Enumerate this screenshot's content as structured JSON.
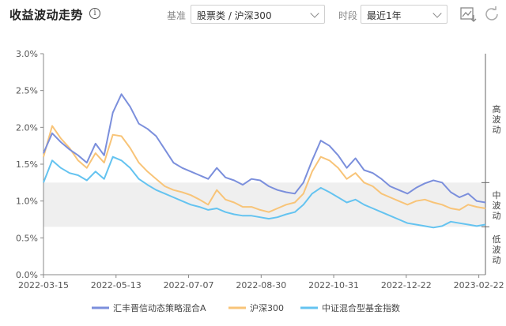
{
  "header": {
    "title": "收益波动走势",
    "info_symbol": "i",
    "benchmark_label": "基准",
    "benchmark_value": "股票类 / 沪深300",
    "period_label": "时段",
    "period_value": "最近1年"
  },
  "colors": {
    "fund": "#7b8fdc",
    "hs300": "#f8c478",
    "index": "#64c3f0",
    "band": "#efefef",
    "axis": "#888888"
  },
  "icons": [
    "chart-download-icon",
    "refresh-icon",
    "info-icon",
    "chevron-down-icon"
  ],
  "volatility_labels": {
    "high": [
      "高",
      "波",
      "动"
    ],
    "mid": [
      "中",
      "波",
      "动"
    ],
    "low": [
      "低",
      "波",
      "动"
    ]
  },
  "chart_data": {
    "type": "line",
    "title": "",
    "xlabel": "",
    "ylabel": "",
    "x_ticks": [
      "2022-03-15",
      "2022-05-13",
      "2022-07-07",
      "2022-08-30",
      "2022-10-31",
      "2022-12-22",
      "2023-02-22"
    ],
    "y_ticks": [
      "0.0%",
      "0.5%",
      "1.0%",
      "1.5%",
      "2.0%",
      "2.5%",
      "3.0%"
    ],
    "ylim": [
      0,
      3.0
    ],
    "y_unit": "%",
    "mid_volatility_band": [
      0.65,
      1.25
    ],
    "legend_position": "bottom",
    "x": [
      "2022-03-15",
      "2022-03-22",
      "2022-03-29",
      "2022-04-05",
      "2022-04-12",
      "2022-04-19",
      "2022-04-26",
      "2022-05-03",
      "2022-05-10",
      "2022-05-17",
      "2022-05-24",
      "2022-05-31",
      "2022-06-07",
      "2022-06-14",
      "2022-06-21",
      "2022-06-28",
      "2022-07-05",
      "2022-07-12",
      "2022-07-19",
      "2022-07-26",
      "2022-08-02",
      "2022-08-09",
      "2022-08-16",
      "2022-08-23",
      "2022-08-30",
      "2022-09-06",
      "2022-09-13",
      "2022-09-20",
      "2022-09-27",
      "2022-10-04",
      "2022-10-11",
      "2022-10-18",
      "2022-10-25",
      "2022-11-01",
      "2022-11-08",
      "2022-11-15",
      "2022-11-22",
      "2022-11-29",
      "2022-12-06",
      "2022-12-13",
      "2022-12-20",
      "2022-12-27",
      "2023-01-03",
      "2023-01-10",
      "2023-01-17",
      "2023-01-24",
      "2023-01-31",
      "2023-02-07",
      "2023-02-14",
      "2023-02-21",
      "2023-02-28",
      "2023-03-07"
    ],
    "series": [
      {
        "name": "汇丰晋信动态策略混合A",
        "color_key": "fund",
        "values": [
          1.65,
          1.92,
          1.8,
          1.7,
          1.62,
          1.52,
          1.78,
          1.62,
          2.2,
          2.45,
          2.28,
          2.05,
          1.98,
          1.88,
          1.7,
          1.52,
          1.45,
          1.4,
          1.35,
          1.3,
          1.45,
          1.32,
          1.28,
          1.22,
          1.3,
          1.28,
          1.2,
          1.15,
          1.12,
          1.1,
          1.25,
          1.55,
          1.82,
          1.75,
          1.62,
          1.45,
          1.58,
          1.42,
          1.38,
          1.3,
          1.2,
          1.15,
          1.1,
          1.18,
          1.24,
          1.28,
          1.25,
          1.12,
          1.05,
          1.1,
          1.0,
          0.98
        ]
      },
      {
        "name": "沪深300",
        "color_key": "hs300",
        "values": [
          1.6,
          2.02,
          1.85,
          1.72,
          1.55,
          1.45,
          1.65,
          1.52,
          1.9,
          1.88,
          1.72,
          1.52,
          1.4,
          1.3,
          1.2,
          1.15,
          1.12,
          1.08,
          1.02,
          0.95,
          1.15,
          1.02,
          0.98,
          0.92,
          0.92,
          0.88,
          0.85,
          0.9,
          0.95,
          0.98,
          1.1,
          1.4,
          1.6,
          1.55,
          1.45,
          1.3,
          1.38,
          1.25,
          1.2,
          1.1,
          1.05,
          1.0,
          0.95,
          1.0,
          1.02,
          0.98,
          0.95,
          0.9,
          0.88,
          0.95,
          0.92,
          0.9
        ]
      },
      {
        "name": "中证混合型基金指数",
        "color_key": "index",
        "values": [
          1.25,
          1.55,
          1.45,
          1.38,
          1.35,
          1.28,
          1.4,
          1.3,
          1.6,
          1.55,
          1.45,
          1.3,
          1.22,
          1.15,
          1.1,
          1.05,
          1.0,
          0.95,
          0.92,
          0.88,
          0.9,
          0.85,
          0.82,
          0.8,
          0.8,
          0.78,
          0.76,
          0.78,
          0.82,
          0.85,
          0.95,
          1.1,
          1.18,
          1.12,
          1.05,
          0.98,
          1.02,
          0.95,
          0.9,
          0.85,
          0.8,
          0.75,
          0.7,
          0.68,
          0.66,
          0.64,
          0.66,
          0.72,
          0.7,
          0.68,
          0.66,
          0.68
        ]
      }
    ]
  }
}
